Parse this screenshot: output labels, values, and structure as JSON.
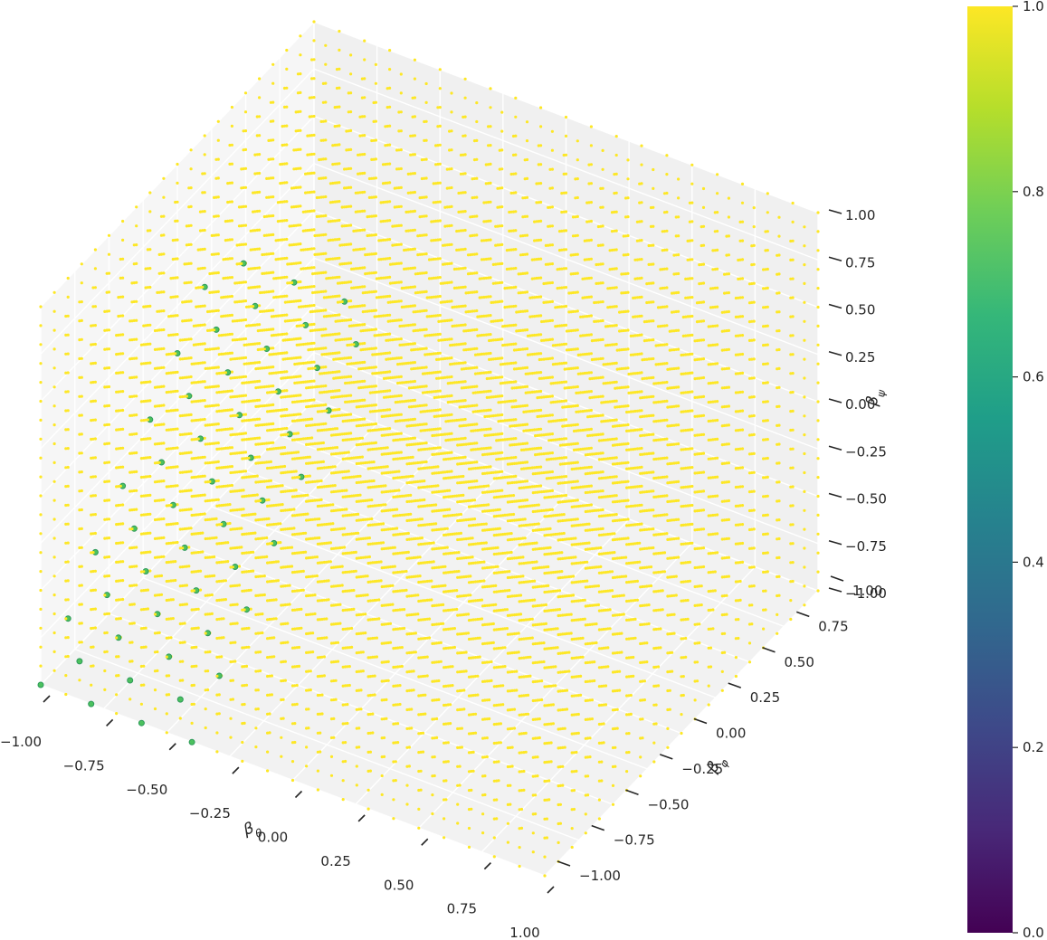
{
  "chart_data": {
    "type": "scatter3d",
    "title": "",
    "xlabel": "β_θ",
    "ylabel": "β_φ",
    "zlabel": "β_ψ",
    "x_ticks": [
      "−1.00",
      "−0.75",
      "−0.50",
      "−0.25",
      "0.00",
      "0.25",
      "0.50",
      "0.75",
      "1.00"
    ],
    "y_ticks": [
      "−1.00",
      "−0.75",
      "−0.50",
      "−0.25",
      "0.00",
      "0.25",
      "0.50",
      "0.75",
      "1.00"
    ],
    "z_ticks": [
      "−1.00",
      "−0.75",
      "−0.50",
      "−0.25",
      "0.00",
      "0.25",
      "0.50",
      "0.75",
      "1.00"
    ],
    "xlim": [
      -1.0,
      1.0
    ],
    "ylim": [
      -1.0,
      1.0
    ],
    "zlim": [
      -1.0,
      1.0
    ],
    "grid": true,
    "colormap": "viridis",
    "colorbar": {
      "range": [
        0.0,
        1.0
      ],
      "ticks": [
        "0.0",
        "0.2",
        "0.4",
        "0.6",
        "0.8",
        "1.0"
      ],
      "stops": [
        "#440154",
        "#482878",
        "#3e4989",
        "#31688e",
        "#26828e",
        "#1f9e89",
        "#35b779",
        "#6ece58",
        "#b5de2b",
        "#fde725"
      ]
    },
    "points": {
      "grid_min": -1.0,
      "grid_max": 1.0,
      "grid_step": 0.1,
      "default_value": 1.0,
      "default_color": "#fde725",
      "highlighted_value": 0.75,
      "highlighted_color": "#4cc15e"
    }
  }
}
